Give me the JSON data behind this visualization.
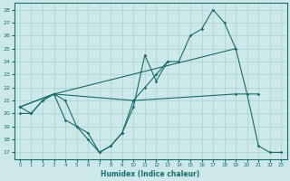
{
  "xlabel": "Humidex (Indice chaleur)",
  "bg_color": "#cce8e8",
  "grid_color": "#aad0d0",
  "line_color": "#1a6b6b",
  "xlim": [
    -0.5,
    23.5
  ],
  "ylim": [
    16.5,
    28.5
  ],
  "yticks": [
    17,
    18,
    19,
    20,
    21,
    22,
    23,
    24,
    25,
    26,
    27,
    28
  ],
  "xticks": [
    0,
    1,
    2,
    3,
    4,
    5,
    6,
    7,
    8,
    9,
    10,
    11,
    12,
    13,
    14,
    15,
    16,
    17,
    18,
    19,
    20,
    21,
    22,
    23
  ],
  "series1": {
    "x": [
      0,
      1,
      2,
      3,
      4,
      5,
      6,
      7,
      8,
      9,
      10,
      11,
      12,
      13,
      14,
      15,
      16,
      17,
      18,
      19,
      20,
      21,
      22,
      23
    ],
    "y": [
      20.0,
      20.0,
      21.0,
      21.5,
      19.5,
      19.0,
      18.5,
      17.0,
      17.5,
      18.5,
      20.5,
      24.5,
      22.5,
      24.0,
      24.0,
      26.0,
      26.5,
      28.0,
      27.0,
      25.0,
      21.5,
      17.5,
      17.0,
      17.0
    ]
  },
  "series2": {
    "x": [
      0,
      1,
      2,
      3,
      4,
      5,
      6,
      7,
      8,
      9,
      10,
      11,
      12,
      13
    ],
    "y": [
      20.5,
      20.0,
      21.0,
      21.5,
      21.0,
      19.0,
      18.0,
      17.0,
      17.5,
      18.5,
      21.0,
      22.0,
      23.0,
      24.0
    ]
  },
  "series3": {
    "x": [
      0,
      3,
      19
    ],
    "y": [
      20.5,
      21.5,
      25.0
    ]
  },
  "series4": {
    "x": [
      0,
      3,
      10,
      19,
      21
    ],
    "y": [
      20.5,
      21.5,
      21.0,
      21.5,
      21.5
    ]
  }
}
